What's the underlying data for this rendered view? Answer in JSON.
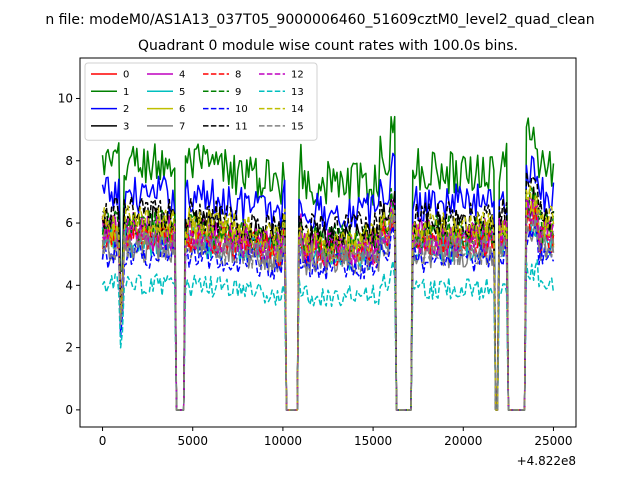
{
  "chart_data": {
    "type": "line",
    "suptitle": "n file: modeM0/AS1A13_037T05_9000006460_51609cztM0_level2_quad_clean",
    "title": "Quadrant 0 module wise count rates with 100.0s bins.",
    "xlabel": "",
    "ylabel": "",
    "x_offset_label": "+4.822e8",
    "xlim": [
      -1250,
      26250
    ],
    "ylim": [
      -0.55,
      11.3
    ],
    "xticks": [
      0,
      5000,
      10000,
      15000,
      20000,
      25000
    ],
    "yticks": [
      0,
      2,
      4,
      6,
      8,
      10
    ],
    "legend_position": "top-left",
    "legend_columns": 4,
    "bin_width_s": 100,
    "x_range": [
      0,
      25000
    ],
    "gaps": [
      {
        "start": 4100,
        "end": 4500
      },
      {
        "start": 10200,
        "end": 10800
      },
      {
        "start": 16300,
        "end": 17100
      },
      {
        "start": 21800,
        "end": 21900
      },
      {
        "start": 22500,
        "end": 23400
      }
    ],
    "series": [
      {
        "name": "0",
        "color": "#ff0000",
        "dash": "solid",
        "level": 5.6
      },
      {
        "name": "1",
        "color": "#008000",
        "dash": "solid",
        "level": 7.9
      },
      {
        "name": "2",
        "color": "#0000ff",
        "dash": "solid",
        "level": 6.9
      },
      {
        "name": "3",
        "color": "#000000",
        "dash": "solid",
        "level": 6.0
      },
      {
        "name": "4",
        "color": "#bf00bf",
        "dash": "solid",
        "level": 5.8
      },
      {
        "name": "5",
        "color": "#00bfbf",
        "dash": "solid",
        "level": 5.4
      },
      {
        "name": "6",
        "color": "#bfbf00",
        "dash": "solid",
        "level": 5.7
      },
      {
        "name": "7",
        "color": "#808080",
        "dash": "solid",
        "level": 5.2
      },
      {
        "name": "8",
        "color": "#ff0000",
        "dash": "dashed",
        "level": 5.5
      },
      {
        "name": "9",
        "color": "#008000",
        "dash": "dashed",
        "level": 5.9
      },
      {
        "name": "10",
        "color": "#0000ff",
        "dash": "dashed",
        "level": 5.0
      },
      {
        "name": "11",
        "color": "#000000",
        "dash": "dashed",
        "level": 6.3
      },
      {
        "name": "12",
        "color": "#bf00bf",
        "dash": "dashed",
        "level": 5.6
      },
      {
        "name": "13",
        "color": "#00bfbf",
        "dash": "dashed",
        "level": 4.0
      },
      {
        "name": "14",
        "color": "#bfbf00",
        "dash": "dashed",
        "level": 6.0
      },
      {
        "name": "15",
        "color": "#808080",
        "dash": "dashed",
        "level": 5.3
      }
    ]
  }
}
